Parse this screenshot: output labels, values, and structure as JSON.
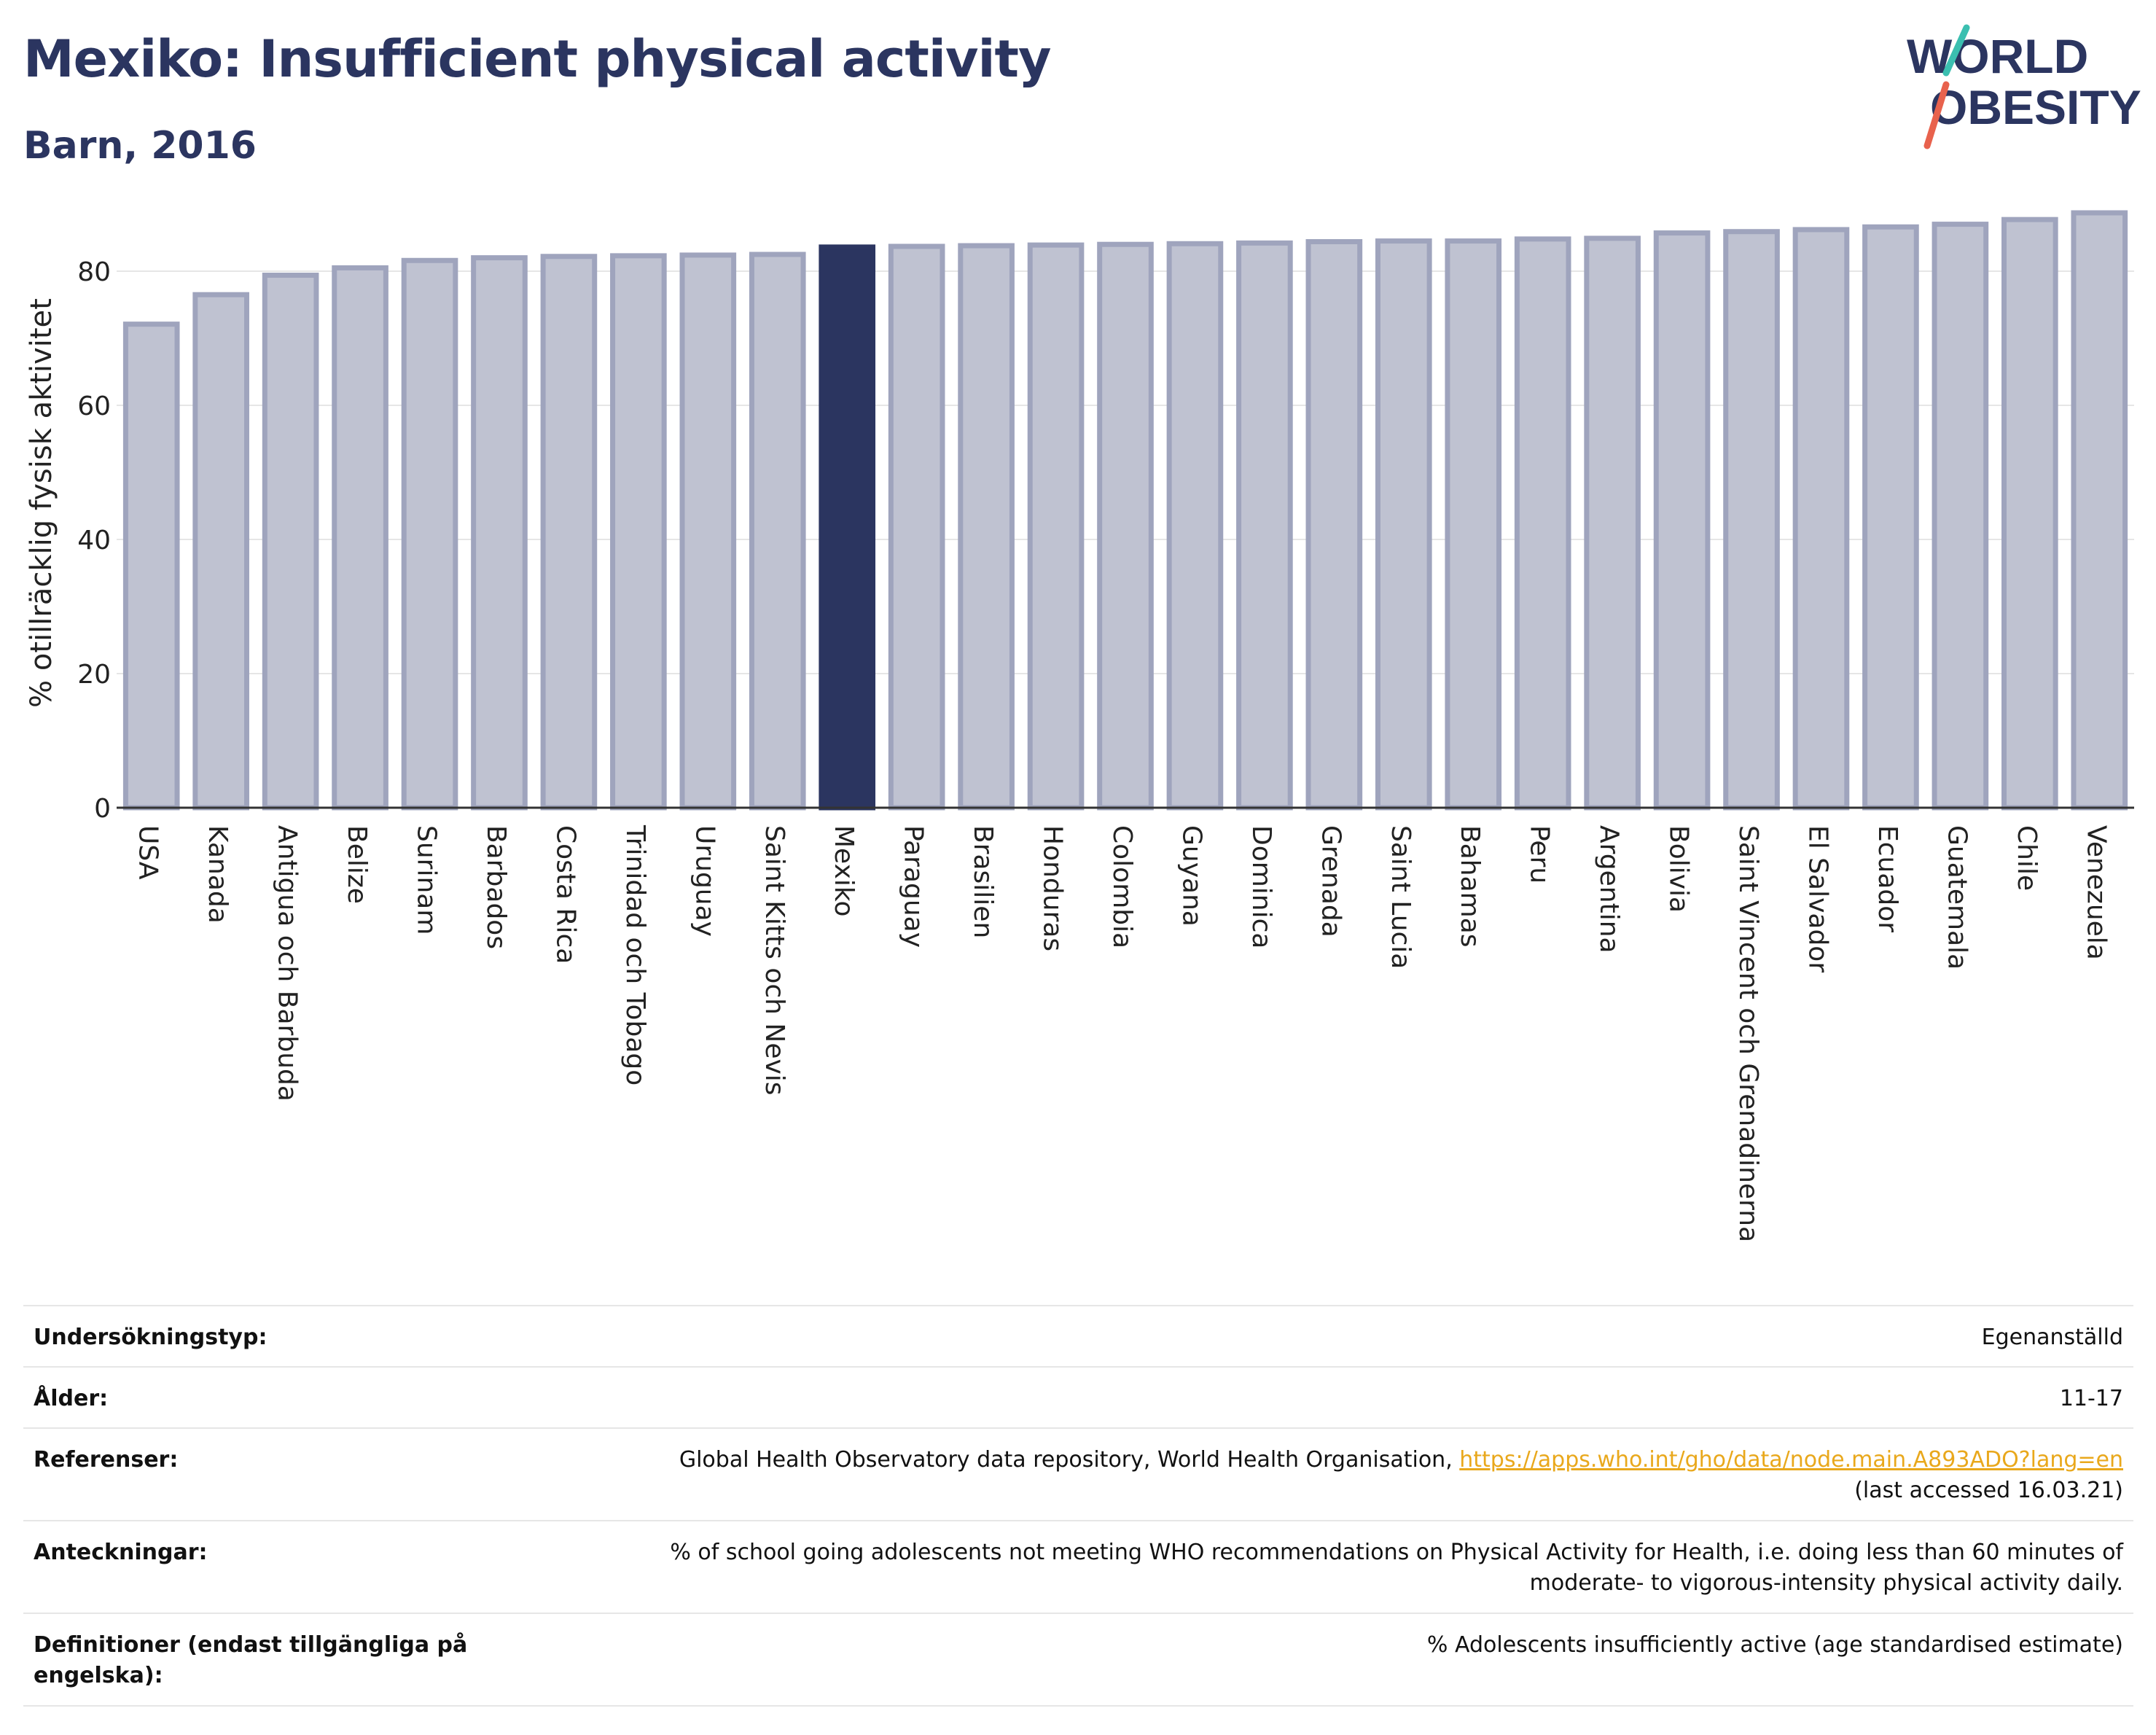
{
  "header": {
    "title": "Mexiko: Insufficient physical activity",
    "subtitle": "Barn, 2016"
  },
  "logo": {
    "line1": "WORLD",
    "line2": "OBESITY"
  },
  "colors": {
    "brand": "#2b3560",
    "bar": "#bfc2d1",
    "bar_border": "#9fa4bd",
    "highlight": "#2b3560",
    "link": "#e9a81c",
    "logo_teal": "#3bbfb0",
    "logo_red": "#e8624d"
  },
  "chart_data": {
    "type": "bar",
    "ylabel": "% otillräcklig fysisk aktivitet",
    "ylim": [
      0,
      90
    ],
    "yticks": [
      0,
      20,
      40,
      60,
      80
    ],
    "grid": true,
    "highlight": "Mexiko",
    "categories": [
      "USA",
      "Kanada",
      "Antigua och Barbuda",
      "Belize",
      "Surinam",
      "Barbados",
      "Costa Rica",
      "Trinidad och Tobago",
      "Uruguay",
      "Saint Kitts och Nevis",
      "Mexiko",
      "Paraguay",
      "Brasilien",
      "Honduras",
      "Colombia",
      "Guyana",
      "Dominica",
      "Grenada",
      "Saint Lucia",
      "Bahamas",
      "Peru",
      "Argentina",
      "Bolivia",
      "Saint Vincent och Grenadinerna",
      "El Salvador",
      "Ecuador",
      "Guatemala",
      "Chile",
      "Venezuela"
    ],
    "values": [
      72.1,
      76.5,
      79.4,
      80.5,
      81.6,
      82.0,
      82.2,
      82.3,
      82.4,
      82.5,
      83.6,
      83.7,
      83.8,
      83.9,
      84.0,
      84.1,
      84.2,
      84.4,
      84.5,
      84.5,
      84.8,
      84.9,
      85.7,
      85.9,
      86.2,
      86.6,
      87.0,
      87.7,
      88.7
    ]
  },
  "meta": [
    {
      "label": "Undersökningstyp:",
      "value": "Egenanställd"
    },
    {
      "label": "Ålder:",
      "value": "11-17"
    },
    {
      "label": "Referenser:",
      "value": "Global Health Observatory data repository, World Health Organisation, ",
      "link": "https://apps.who.int/gho/data/node.main.A893ADO?lang=en",
      "value_after": "(last accessed 16.03.21)"
    },
    {
      "label": "Anteckningar:",
      "value": "% of school going adolescents not meeting WHO recommendations on Physical Activity for Health, i.e. doing less than 60 minutes of moderate- to vigorous-intensity physical activity daily."
    },
    {
      "label": "Definitioner (endast tillgängliga på engelska):",
      "value": "% Adolescents insufficiently active (age standardised estimate)"
    }
  ]
}
